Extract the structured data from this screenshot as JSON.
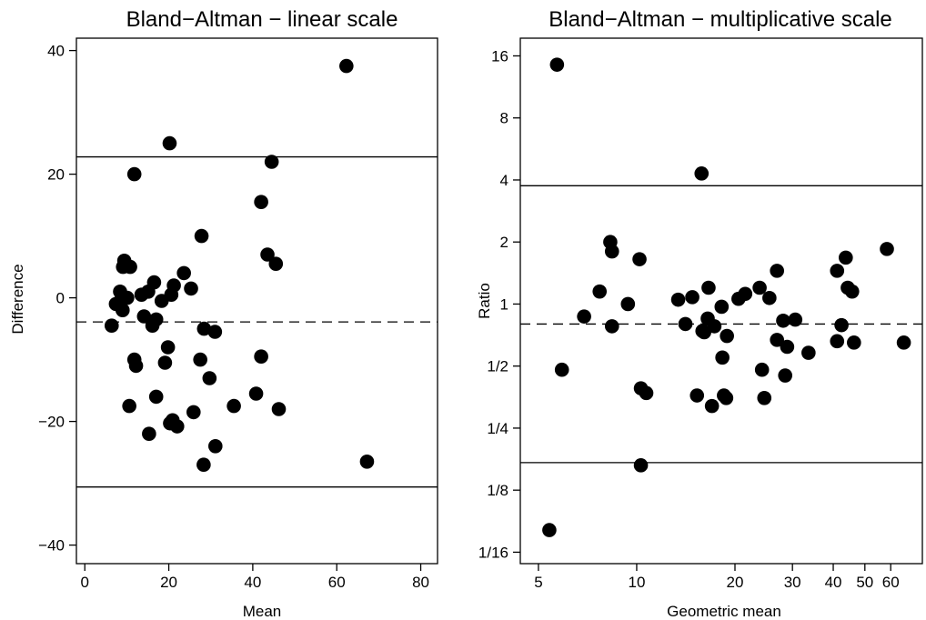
{
  "chart_data": [
    {
      "type": "scatter",
      "title": "Bland−Altman − linear scale",
      "xlabel": "Mean",
      "ylabel": "Difference",
      "xscale": "linear",
      "yscale": "linear",
      "xlim": [
        -2,
        84
      ],
      "ylim": [
        -43,
        42
      ],
      "xticks": [
        0,
        20,
        40,
        60,
        80
      ],
      "xticklabels": [
        "0",
        "20",
        "40",
        "60",
        "80"
      ],
      "yticks": [
        -40,
        -20,
        0,
        20,
        40
      ],
      "yticklabels": [
        "−40",
        "−20",
        "0",
        "20",
        "40"
      ],
      "grid": false,
      "reference_lines": [
        {
          "kind": "upper limit of agreement",
          "y": 22.8,
          "style": "solid"
        },
        {
          "kind": "mean difference",
          "y": -3.9,
          "style": "dashed"
        },
        {
          "kind": "lower limit of agreement",
          "y": -30.6,
          "style": "solid"
        }
      ],
      "points": [
        [
          62.3,
          37.5
        ],
        [
          20.2,
          25.0
        ],
        [
          44.5,
          22.0
        ],
        [
          11.8,
          20.0
        ],
        [
          42.0,
          15.5
        ],
        [
          27.8,
          10.0
        ],
        [
          43.5,
          7.0
        ],
        [
          9.4,
          6.0
        ],
        [
          45.5,
          5.5
        ],
        [
          9.1,
          5.0
        ],
        [
          10.8,
          5.0
        ],
        [
          23.6,
          4.0
        ],
        [
          16.5,
          2.5
        ],
        [
          21.2,
          2.0
        ],
        [
          25.3,
          1.5
        ],
        [
          15.1,
          1.0
        ],
        [
          13.5,
          0.5
        ],
        [
          20.6,
          0.5
        ],
        [
          8.4,
          1.0
        ],
        [
          10.1,
          0.0
        ],
        [
          8.5,
          -0.5
        ],
        [
          18.3,
          -0.5
        ],
        [
          7.4,
          -1.0
        ],
        [
          9.0,
          -2.0
        ],
        [
          6.4,
          -4.5
        ],
        [
          14.1,
          -3.0
        ],
        [
          17.0,
          -3.5
        ],
        [
          16.1,
          -4.5
        ],
        [
          28.4,
          -5.0
        ],
        [
          31.0,
          -5.5
        ],
        [
          19.8,
          -8.0
        ],
        [
          11.8,
          -10.0
        ],
        [
          12.2,
          -11.0
        ],
        [
          19.1,
          -10.5
        ],
        [
          27.5,
          -10.0
        ],
        [
          42.0,
          -9.5
        ],
        [
          29.7,
          -13.0
        ],
        [
          17.0,
          -16.0
        ],
        [
          10.6,
          -17.5
        ],
        [
          40.8,
          -15.5
        ],
        [
          35.5,
          -17.5
        ],
        [
          46.2,
          -18.0
        ],
        [
          25.9,
          -18.5
        ],
        [
          20.3,
          -20.3
        ],
        [
          20.9,
          -19.8
        ],
        [
          22.0,
          -20.8
        ],
        [
          15.3,
          -22.0
        ],
        [
          31.1,
          -24.0
        ],
        [
          28.3,
          -27.0
        ],
        [
          67.2,
          -26.5
        ]
      ]
    },
    {
      "type": "scatter",
      "title": "Bland−Altman − multiplicative scale",
      "xlabel": "Geometric mean",
      "ylabel": "Ratio",
      "xscale": "log",
      "yscale": "log",
      "xlim": [
        4.4,
        75
      ],
      "ylim": [
        0.055,
        19.5
      ],
      "xticks": [
        5,
        10,
        20,
        30,
        40,
        50,
        60
      ],
      "xticklabels": [
        "5",
        "10",
        "20",
        "30",
        "40",
        "50",
        "60"
      ],
      "yticks": [
        0.0625,
        0.125,
        0.25,
        0.5,
        1,
        2,
        4,
        8,
        16
      ],
      "yticklabels": [
        "1/16",
        "1/8",
        "1/4",
        "1/2",
        "1",
        "2",
        "4",
        "8",
        "16"
      ],
      "grid": false,
      "reference_lines": [
        {
          "kind": "upper limit of agreement",
          "y": 3.75,
          "style": "solid"
        },
        {
          "kind": "geometric mean ratio",
          "y": 0.8,
          "style": "dashed"
        },
        {
          "kind": "lower limit of agreement",
          "y": 0.17,
          "style": "solid"
        }
      ],
      "points": [
        [
          5.7,
          14.5
        ],
        [
          15.8,
          4.3
        ],
        [
          8.3,
          2.0
        ],
        [
          8.4,
          1.8
        ],
        [
          10.2,
          1.65
        ],
        [
          7.7,
          1.15
        ],
        [
          9.4,
          1.0
        ],
        [
          13.4,
          1.05
        ],
        [
          14.8,
          1.08
        ],
        [
          16.6,
          1.2
        ],
        [
          18.2,
          0.97
        ],
        [
          20.5,
          1.06
        ],
        [
          21.5,
          1.12
        ],
        [
          23.8,
          1.2
        ],
        [
          25.5,
          1.07
        ],
        [
          26.9,
          1.45
        ],
        [
          6.9,
          0.87
        ],
        [
          8.4,
          0.78
        ],
        [
          14.1,
          0.8
        ],
        [
          16.5,
          0.85
        ],
        [
          17.3,
          0.78
        ],
        [
          15.9,
          0.74
        ],
        [
          16.1,
          0.73
        ],
        [
          18.9,
          0.7
        ],
        [
          26.9,
          0.67
        ],
        [
          28.1,
          0.83
        ],
        [
          30.6,
          0.84
        ],
        [
          28.9,
          0.62
        ],
        [
          33.6,
          0.58
        ],
        [
          18.3,
          0.55
        ],
        [
          41.1,
          0.66
        ],
        [
          41.1,
          1.45
        ],
        [
          42.4,
          0.79
        ],
        [
          43.7,
          1.68
        ],
        [
          44.3,
          1.2
        ],
        [
          45.7,
          1.15
        ],
        [
          46.3,
          0.65
        ],
        [
          58.4,
          1.85
        ],
        [
          65.8,
          0.65
        ],
        [
          5.9,
          0.48
        ],
        [
          10.3,
          0.39
        ],
        [
          10.7,
          0.37
        ],
        [
          15.3,
          0.36
        ],
        [
          18.5,
          0.36
        ],
        [
          18.8,
          0.35
        ],
        [
          24.2,
          0.48
        ],
        [
          24.6,
          0.35
        ],
        [
          28.5,
          0.45
        ],
        [
          17.0,
          0.32
        ],
        [
          10.3,
          0.165
        ],
        [
          5.4,
          0.08
        ]
      ]
    }
  ]
}
